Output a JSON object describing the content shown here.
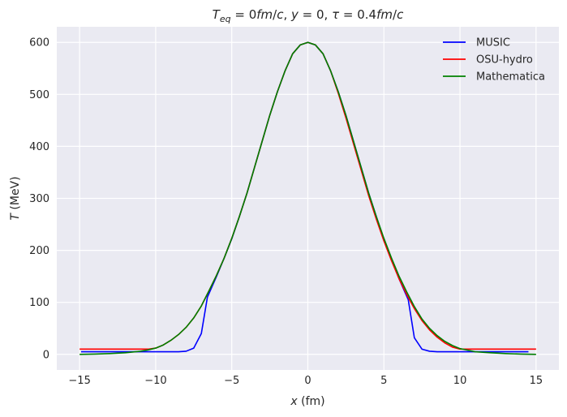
{
  "chart_data": {
    "type": "line",
    "title": "$T_{eq} = 0fm/c, y=0, \\tau=0.4fm/c$",
    "title_parts": [
      {
        "text": "T",
        "style": "italic",
        "shift": "base"
      },
      {
        "text": "eq",
        "style": "italic",
        "shift": "sub"
      },
      {
        "text": " = 0",
        "style": "normal",
        "shift": "base"
      },
      {
        "text": "fm",
        "style": "italic",
        "shift": "base"
      },
      {
        "text": "/",
        "style": "normal",
        "shift": "base"
      },
      {
        "text": "c",
        "style": "italic",
        "shift": "base"
      },
      {
        "text": ", ",
        "style": "normal",
        "shift": "base"
      },
      {
        "text": "y",
        "style": "italic",
        "shift": "base"
      },
      {
        "text": " = 0, ",
        "style": "normal",
        "shift": "base"
      },
      {
        "text": "τ",
        "style": "italic",
        "shift": "base"
      },
      {
        "text": " = 0.4",
        "style": "normal",
        "shift": "base"
      },
      {
        "text": "fm",
        "style": "italic",
        "shift": "base"
      },
      {
        "text": "/",
        "style": "normal",
        "shift": "base"
      },
      {
        "text": "c",
        "style": "italic",
        "shift": "base"
      }
    ],
    "xlabel": "x (fm)",
    "xlabel_parts": [
      {
        "text": "x",
        "style": "italic"
      },
      {
        "text": " (fm)",
        "style": "normal"
      }
    ],
    "ylabel": "T (MeV)",
    "ylabel_parts": [
      {
        "text": "T",
        "style": "italic"
      },
      {
        "text": " (MeV)",
        "style": "normal"
      }
    ],
    "xlim": [
      -16.5,
      16.5
    ],
    "ylim": [
      -30,
      630
    ],
    "xticks": [
      -15,
      -10,
      -5,
      0,
      5,
      10,
      15
    ],
    "xtick_labels": [
      "−15",
      "−10",
      "−5",
      "0",
      "5",
      "10",
      "15"
    ],
    "yticks": [
      0,
      100,
      200,
      300,
      400,
      500,
      600
    ],
    "ytick_labels": [
      "0",
      "100",
      "200",
      "300",
      "400",
      "500",
      "600"
    ],
    "grid": true,
    "legend_position": "top-right",
    "colors": {
      "background": "#eaeaf2",
      "grid": "#ffffff",
      "text": "#262626"
    },
    "series": [
      {
        "name": "MUSIC",
        "color": "#0000ff",
        "x": [
          -14.9,
          -14,
          -13,
          -12,
          -11,
          -10,
          -9,
          -8.5,
          -8,
          -7.5,
          -7,
          -6.6,
          -6.3,
          -6,
          -5.5,
          -5,
          -4.5,
          -4,
          -3.5,
          -3,
          -2.5,
          -2,
          -1.5,
          -1,
          -0.5,
          0,
          0.5,
          1,
          1.5,
          2,
          2.5,
          3,
          3.5,
          4,
          4.5,
          5,
          5.5,
          6,
          6.3,
          6.6,
          7,
          7.5,
          8,
          8.5,
          9,
          10,
          11,
          12,
          13,
          14,
          14.5
        ],
        "y": [
          5,
          5,
          5,
          5,
          5,
          5,
          5,
          5,
          6,
          12,
          40,
          110,
          130,
          150,
          185,
          222,
          265,
          310,
          360,
          410,
          460,
          505,
          545,
          578,
          595,
          600,
          595,
          578,
          545,
          505,
          460,
          410,
          360,
          310,
          265,
          220,
          182,
          145,
          125,
          105,
          32,
          10,
          6,
          5,
          5,
          5,
          5,
          5,
          5,
          5,
          5
        ]
      },
      {
        "name": "OSU-hydro",
        "color": "#ff0000",
        "x": [
          -15,
          -14,
          -13,
          -12,
          -11,
          -10.5,
          -10,
          -9.5,
          -9,
          -8.5,
          -8,
          -7.5,
          -7,
          -6.5,
          -6,
          -5.5,
          -5,
          -4.5,
          -4,
          -3.5,
          -3,
          -2.5,
          -2,
          -1.5,
          -1,
          -0.5,
          0,
          0.5,
          1,
          1.5,
          2,
          2.5,
          3,
          3.5,
          4,
          4.5,
          5,
          5.5,
          6,
          6.5,
          7,
          7.5,
          8,
          8.5,
          9,
          9.5,
          10,
          10.5,
          11,
          12,
          13,
          14,
          15
        ],
        "y": [
          10,
          10,
          10,
          10,
          10,
          10,
          12,
          18,
          27,
          38,
          52,
          70,
          93,
          122,
          152,
          185,
          223,
          265,
          310,
          360,
          410,
          460,
          505,
          545,
          578,
          595,
          600,
          595,
          578,
          545,
          502,
          455,
          405,
          355,
          305,
          260,
          218,
          180,
          145,
          115,
          88,
          65,
          47,
          33,
          22,
          14,
          10,
          10,
          10,
          10,
          10,
          10,
          10
        ]
      },
      {
        "name": "Mathematica",
        "color": "#008000",
        "x": [
          -15,
          -14,
          -13,
          -12,
          -11,
          -10.5,
          -10,
          -9.5,
          -9,
          -8.5,
          -8,
          -7.5,
          -7,
          -6.5,
          -6,
          -5.5,
          -5,
          -4.5,
          -4,
          -3.5,
          -3,
          -2.5,
          -2,
          -1.5,
          -1,
          -0.5,
          0,
          0.5,
          1,
          1.5,
          2,
          2.5,
          3,
          3.5,
          4,
          4.5,
          5,
          5.5,
          6,
          6.5,
          7,
          7.5,
          8,
          8.5,
          9,
          9.5,
          10,
          10.5,
          11,
          12,
          13,
          14,
          15
        ],
        "y": [
          0,
          0.5,
          1.5,
          3,
          6,
          8.5,
          12,
          18,
          27,
          38,
          52,
          70,
          93,
          122,
          152,
          185,
          223,
          265,
          310,
          360,
          410,
          460,
          505,
          545,
          578,
          595,
          600,
          595,
          578,
          545,
          505,
          460,
          410,
          360,
          310,
          265,
          223,
          185,
          150,
          120,
          92,
          68,
          50,
          36,
          25,
          17,
          11,
          8,
          5,
          3,
          1.5,
          0.5,
          0
        ]
      }
    ]
  }
}
